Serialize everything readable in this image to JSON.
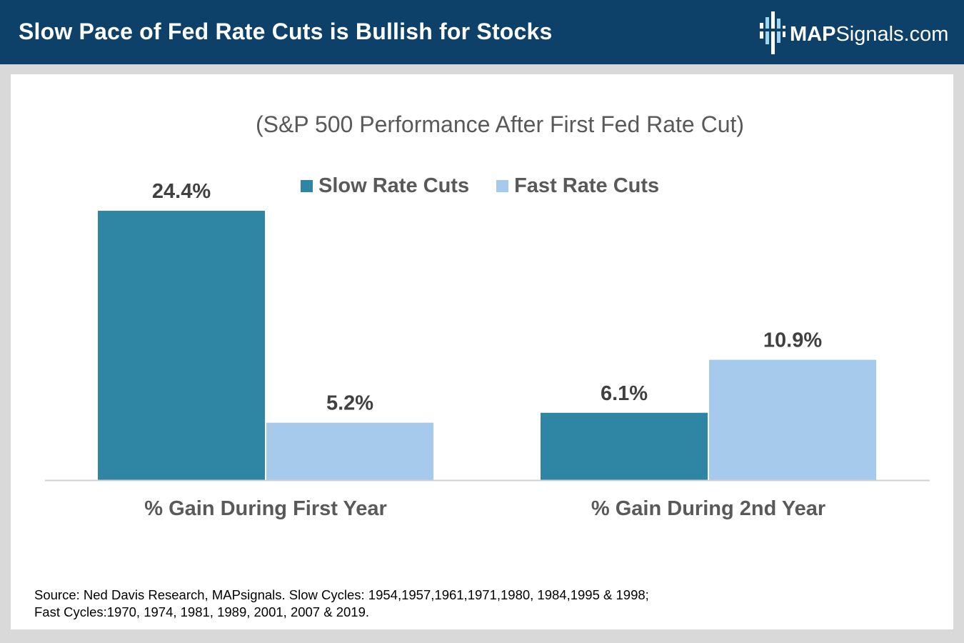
{
  "header": {
    "title": "Slow Pace of Fed Rate Cuts is Bullish for Stocks",
    "logo_bold": "MAP",
    "logo_rest": "Signals.com",
    "background": "#0e416a"
  },
  "chart": {
    "subtitle": "(S&P 500 Performance After First Fed Rate Cut)",
    "source_line1": "Source: Ned Davis Research, MAPsignals. Slow Cycles: 1954,1957,1961,1971,1980, 1984,1995 & 1998;",
    "source_line2": "Fast Cycles:1970, 1974, 1981, 1989, 2001, 2007 & 2019."
  },
  "chart_data": {
    "type": "bar",
    "title": "(S&P 500 Performance After First Fed Rate Cut)",
    "categories": [
      "% Gain During First Year",
      "% Gain During 2nd Year"
    ],
    "series": [
      {
        "name": "Slow Rate Cuts",
        "values": [
          24.4,
          6.1
        ],
        "labels": [
          "24.4%",
          "6.1%"
        ],
        "color": "#2e86a4"
      },
      {
        "name": "Fast Rate Cuts",
        "values": [
          5.2,
          10.9
        ],
        "labels": [
          "5.2%",
          "10.9%"
        ],
        "color": "#a6caec"
      }
    ],
    "ylim": [
      0,
      30
    ],
    "xlabel": "",
    "ylabel": "",
    "grid": false,
    "legend": "top"
  }
}
